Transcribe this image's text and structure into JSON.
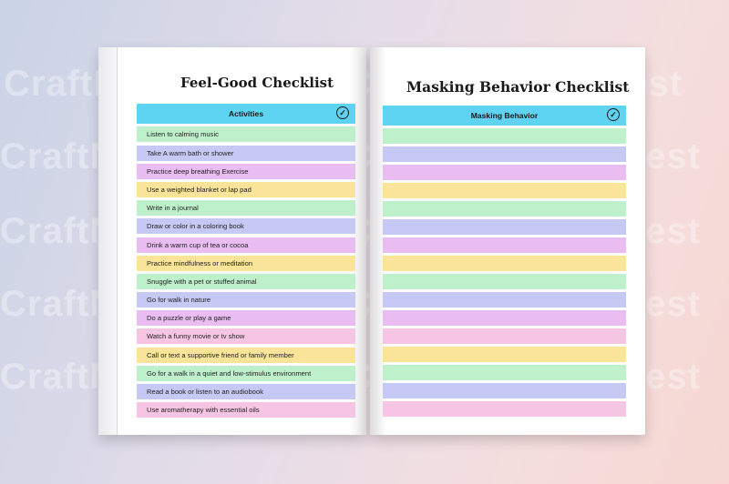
{
  "watermark": {
    "text": "CraftNest"
  },
  "left_page": {
    "title": "Feel-Good Checklist",
    "header": "Activities",
    "check_icon": "check-circle-icon",
    "items": [
      "Listen to calming music",
      "Take A warm bath or shower",
      "Practice deep breathing Exercise",
      "Use a weighted blanket or lap pad",
      "Write in a journal",
      "Draw or color in a coloring book",
      "Drink a warm cup of tea or cocoa",
      "Practice mindfulness or meditation",
      "Snuggle with a pet or stuffed animal",
      "Go for walk in nature",
      "Do a puzzle or play a game",
      "Watch a funny movie or tv show",
      "Call or text a supportive friend or family member",
      "Go for a walk in a quiet and low-stimulus environment",
      "Read a book or listen to an audiobook",
      "Use aromatherapy with essential oils"
    ]
  },
  "right_page": {
    "title": "Masking Behavior  Checklist",
    "header": "Masking Behavior",
    "check_icon": "check-circle-icon",
    "blank_rows": 16
  },
  "colors": {
    "header": "#5ed3f2",
    "row_cycle": [
      "#bff0cc",
      "#c6c9f4",
      "#e9bdf2",
      "#f9e49a",
      "#bff0cc",
      "#c6c9f4",
      "#e9bdf2",
      "#f9e49a"
    ],
    "pink": "#f7c5e4"
  }
}
